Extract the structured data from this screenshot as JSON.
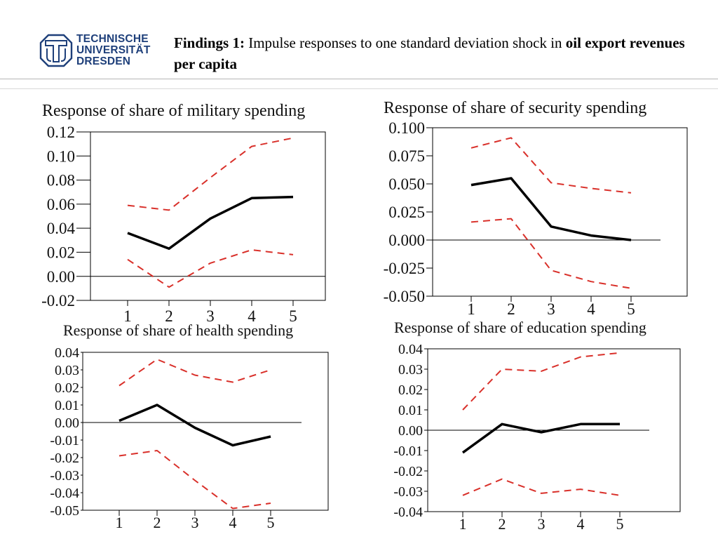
{
  "header": {
    "logo_lines": [
      "TECHNISCHE",
      "UNIVERSITÄT",
      "DRESDEN"
    ],
    "title_label": "Findings 1:",
    "title_text": " Impulse responses to one standard deviation shock in ",
    "title_bold_tail": "oil export revenues per capita",
    "icon": "tu-dresden-logo-icon"
  },
  "colors": {
    "response": "#000000",
    "band": "#d9302a",
    "zero_line": "#000000",
    "frame": "#000000",
    "logo": "#1e3f7a"
  },
  "chart_data": [
    {
      "type": "line",
      "title": "Response of share of military spending",
      "x": [
        1,
        2,
        3,
        4,
        5
      ],
      "ylim": [
        -0.02,
        0.12
      ],
      "yticks": [
        "0.12",
        "0.10",
        "0.08",
        "0.06",
        "0.04",
        "0.02",
        "0.00",
        "-0.02"
      ],
      "ytick_values": [
        0.12,
        0.1,
        0.08,
        0.06,
        0.04,
        0.02,
        0.0,
        -0.02
      ],
      "series": [
        {
          "role": "response",
          "values": [
            0.036,
            0.023,
            0.048,
            0.065,
            0.066
          ]
        },
        {
          "role": "upper",
          "values": [
            0.059,
            0.055,
            0.082,
            0.108,
            0.115
          ]
        },
        {
          "role": "lower",
          "values": [
            0.014,
            -0.009,
            0.011,
            0.022,
            0.018
          ]
        }
      ]
    },
    {
      "type": "line",
      "title": "Response of share of security spending",
      "x": [
        1,
        2,
        3,
        4,
        5
      ],
      "ylim": [
        -0.05,
        0.1
      ],
      "yticks": [
        "0.100",
        "0.075",
        "0.050",
        "0.025",
        "0.000",
        "-0.025",
        "-0.050"
      ],
      "ytick_values": [
        0.1,
        0.075,
        0.05,
        0.025,
        0.0,
        -0.025,
        -0.05
      ],
      "series": [
        {
          "role": "response",
          "values": [
            0.049,
            0.055,
            0.012,
            0.004,
            0.0
          ]
        },
        {
          "role": "upper",
          "values": [
            0.082,
            0.091,
            0.051,
            0.046,
            0.042
          ]
        },
        {
          "role": "lower",
          "values": [
            0.016,
            0.019,
            -0.027,
            -0.037,
            -0.043
          ]
        }
      ]
    },
    {
      "type": "line",
      "title": "Response of share of health spending",
      "x": [
        1,
        2,
        3,
        4,
        5
      ],
      "ylim": [
        -0.05,
        0.04
      ],
      "yticks": [
        "0.04",
        "0.03",
        "0.02",
        "0.01",
        "0.00",
        "-0.01",
        "-0.02",
        "-0.03",
        "-0.04",
        "-0.05"
      ],
      "ytick_values": [
        0.04,
        0.03,
        0.02,
        0.01,
        0.0,
        -0.01,
        -0.02,
        -0.03,
        -0.04,
        -0.05
      ],
      "series": [
        {
          "role": "response",
          "values": [
            0.001,
            0.01,
            -0.003,
            -0.013,
            -0.008
          ]
        },
        {
          "role": "upper",
          "values": [
            0.021,
            0.036,
            0.027,
            0.023,
            0.03
          ]
        },
        {
          "role": "lower",
          "values": [
            -0.019,
            -0.016,
            -0.033,
            -0.049,
            -0.046
          ]
        }
      ]
    },
    {
      "type": "line",
      "title": "Response of share of education spending",
      "x": [
        1,
        2,
        3,
        4,
        5
      ],
      "ylim": [
        -0.04,
        0.04
      ],
      "yticks": [
        "0.04",
        "0.03",
        "0.02",
        "0.01",
        "0.00",
        "-0.01",
        "-0.02",
        "-0.03",
        "-0.04"
      ],
      "ytick_values": [
        0.04,
        0.03,
        0.02,
        0.01,
        0.0,
        -0.01,
        -0.02,
        -0.03,
        -0.04
      ],
      "series": [
        {
          "role": "response",
          "values": [
            -0.011,
            0.003,
            -0.001,
            0.003,
            0.003
          ]
        },
        {
          "role": "upper",
          "values": [
            0.01,
            0.03,
            0.029,
            0.036,
            0.038
          ]
        },
        {
          "role": "lower",
          "values": [
            -0.032,
            -0.024,
            -0.031,
            -0.029,
            -0.032
          ]
        }
      ]
    }
  ]
}
